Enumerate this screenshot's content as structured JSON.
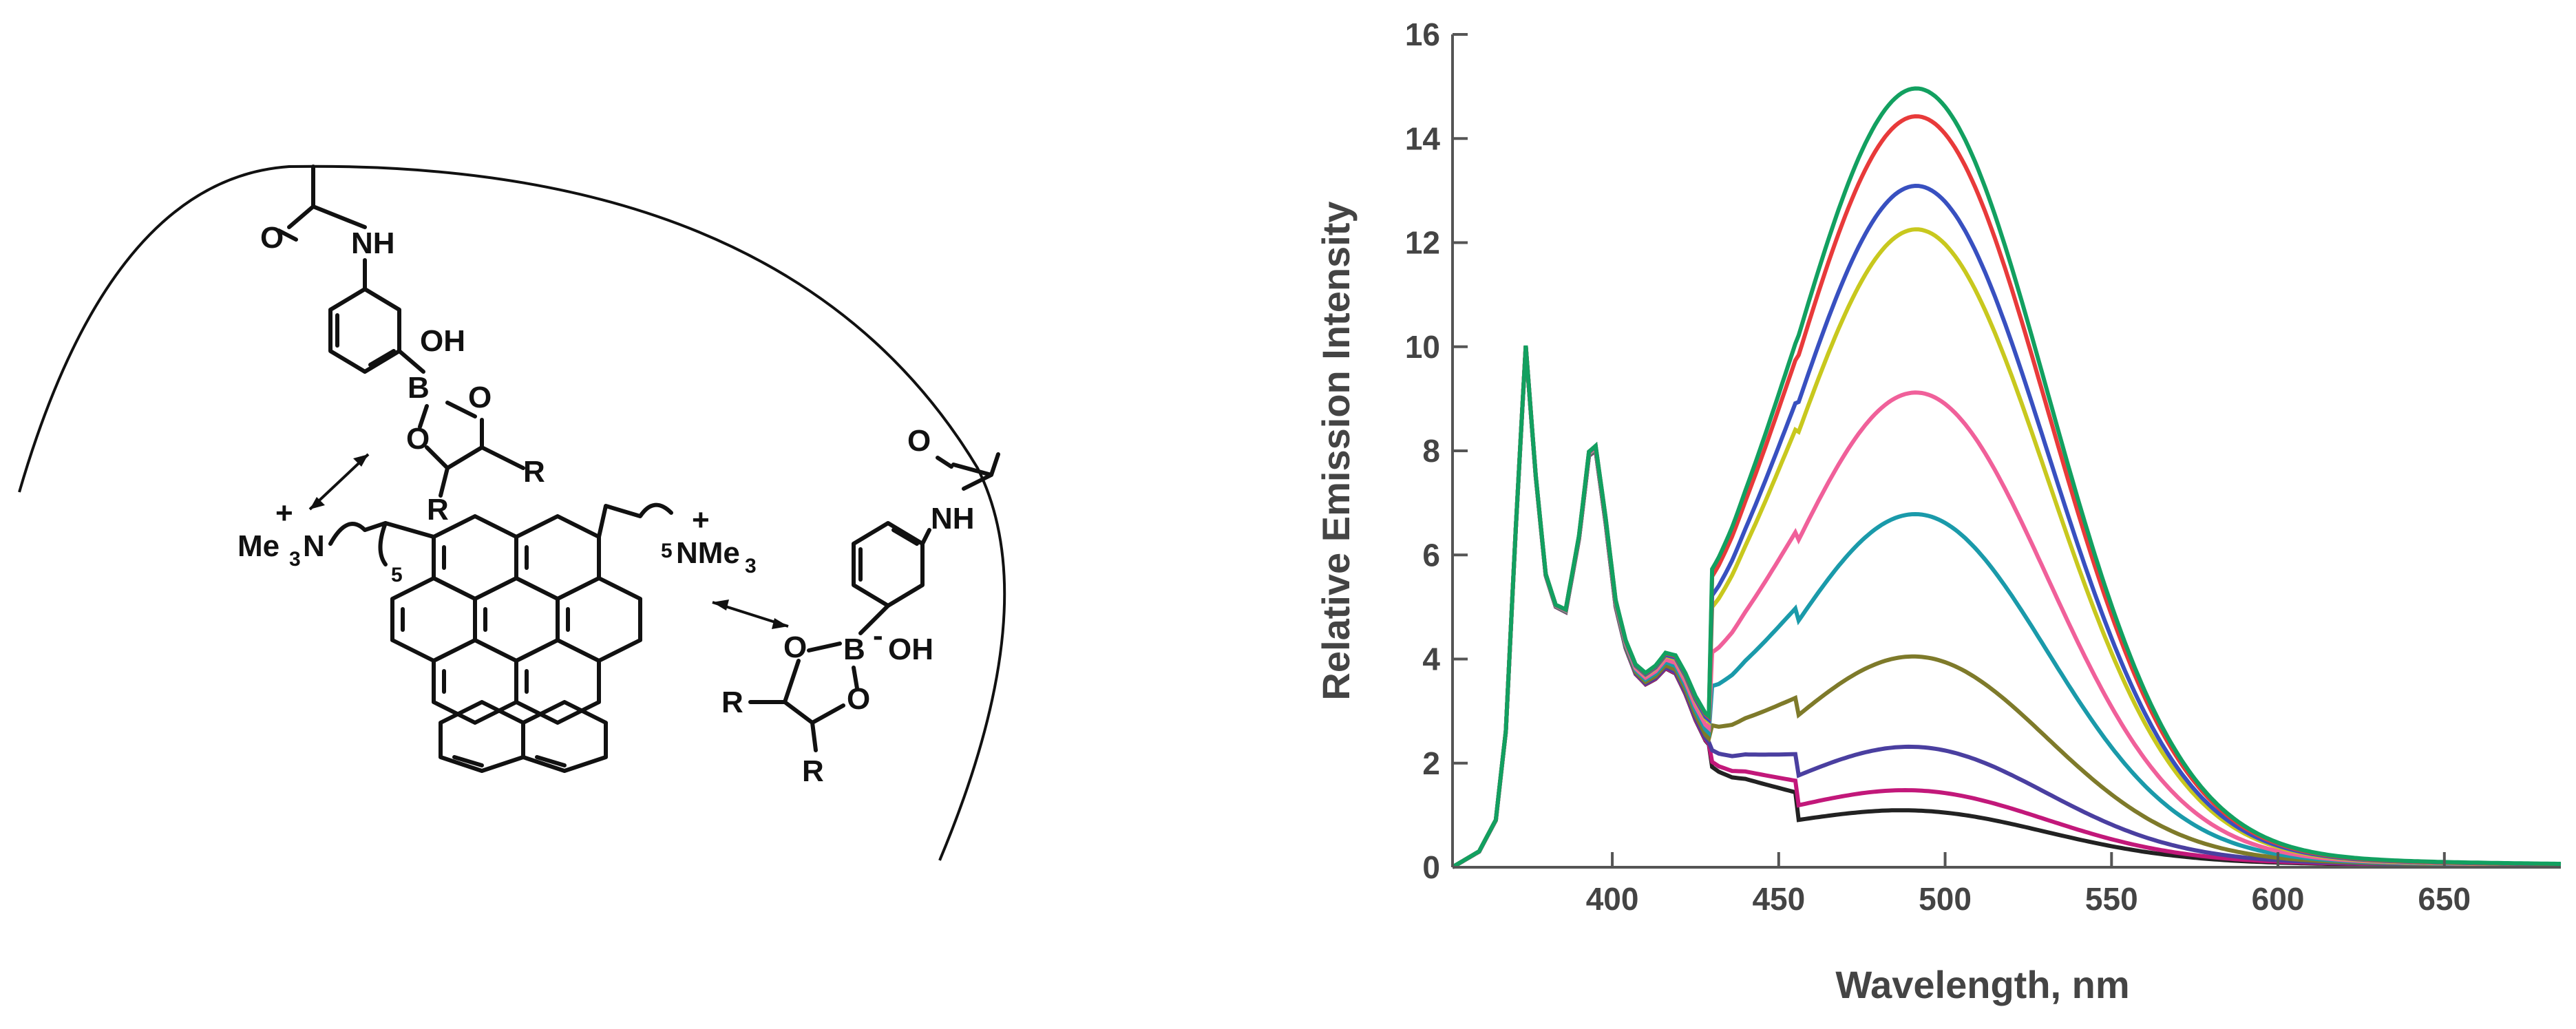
{
  "scheme": {
    "labels": {
      "o_top": "O",
      "nh_top": "NH",
      "oh_top": "OH",
      "b_top": "B",
      "o_ring_top_right": "O",
      "o_ring_top_left": "O",
      "r_top_right": "R",
      "r_top_bottom": "R",
      "nme3_left_me": "Me",
      "nme3_left_sub": "3",
      "nme3_left_n": "N",
      "charge_left": "+",
      "chain_left_sub": "5",
      "chain_right_sub": "5",
      "nme3_right": "NMe",
      "nme3_right_sub": "3",
      "charge_right": "+",
      "o_right": "O",
      "nh_right": "NH",
      "b_right": "B",
      "oh_right": "OH",
      "o_ring_right_top": "O",
      "o_ring_right_bottom": "O",
      "minus_right": "-",
      "r_right_left": "R",
      "r_right_bottom": "R"
    }
  },
  "chart_data": {
    "type": "line",
    "title": "",
    "xlabel": "Wavelength, nm",
    "ylabel": "Relative Emission Intensity",
    "xlim": [
      352,
      685
    ],
    "ylim": [
      0,
      16
    ],
    "xticks": [
      400,
      450,
      500,
      550,
      600,
      650
    ],
    "yticks": [
      0,
      2,
      4,
      6,
      8,
      10,
      12,
      14,
      16
    ],
    "grid": false,
    "legend": "none",
    "colors": [
      "#222222",
      "#c2187a",
      "#4a3fa0",
      "#7e7a2a",
      "#1a9aaa",
      "#f0609a",
      "#c8c81e",
      "#3850c0",
      "#e83a3a",
      "#12a060"
    ],
    "shared_profile": {
      "x": [
        352,
        360,
        365,
        368,
        371,
        374,
        377,
        380,
        383,
        386,
        390,
        393,
        395,
        398,
        401,
        404,
        407,
        410,
        413,
        416,
        419,
        422,
        425,
        428,
        432,
        436,
        440,
        445,
        450,
        455
      ],
      "y": [
        0.0,
        0.3,
        0.9,
        2.6,
        6.5,
        10.0,
        7.5,
        5.6,
        5.0,
        4.9,
        6.3,
        7.9,
        8.0,
        6.6,
        5.0,
        4.2,
        3.7,
        3.5,
        3.6,
        3.8,
        3.7,
        3.3,
        2.8,
        2.4,
        2.1,
        1.9,
        1.8,
        1.6,
        1.4,
        1.2
      ]
    },
    "series": [
      {
        "peak_x": 492,
        "peak_y": 0.85,
        "width": 55
      },
      {
        "peak_x": 492,
        "peak_y": 1.2,
        "width": 55
      },
      {
        "peak_x": 492,
        "peak_y": 2.0,
        "width": 55
      },
      {
        "peak_x": 492,
        "peak_y": 3.7,
        "width": 55
      },
      {
        "peak_x": 492,
        "peak_y": 6.4,
        "width": 55
      },
      {
        "peak_x": 492,
        "peak_y": 8.7,
        "width": 55
      },
      {
        "peak_x": 492,
        "peak_y": 11.8,
        "width": 55
      },
      {
        "peak_x": 492,
        "peak_y": 12.6,
        "width": 55
      },
      {
        "peak_x": 492,
        "peak_y": 13.9,
        "width": 55
      },
      {
        "peak_x": 492,
        "peak_y": 14.4,
        "width": 55
      }
    ]
  }
}
